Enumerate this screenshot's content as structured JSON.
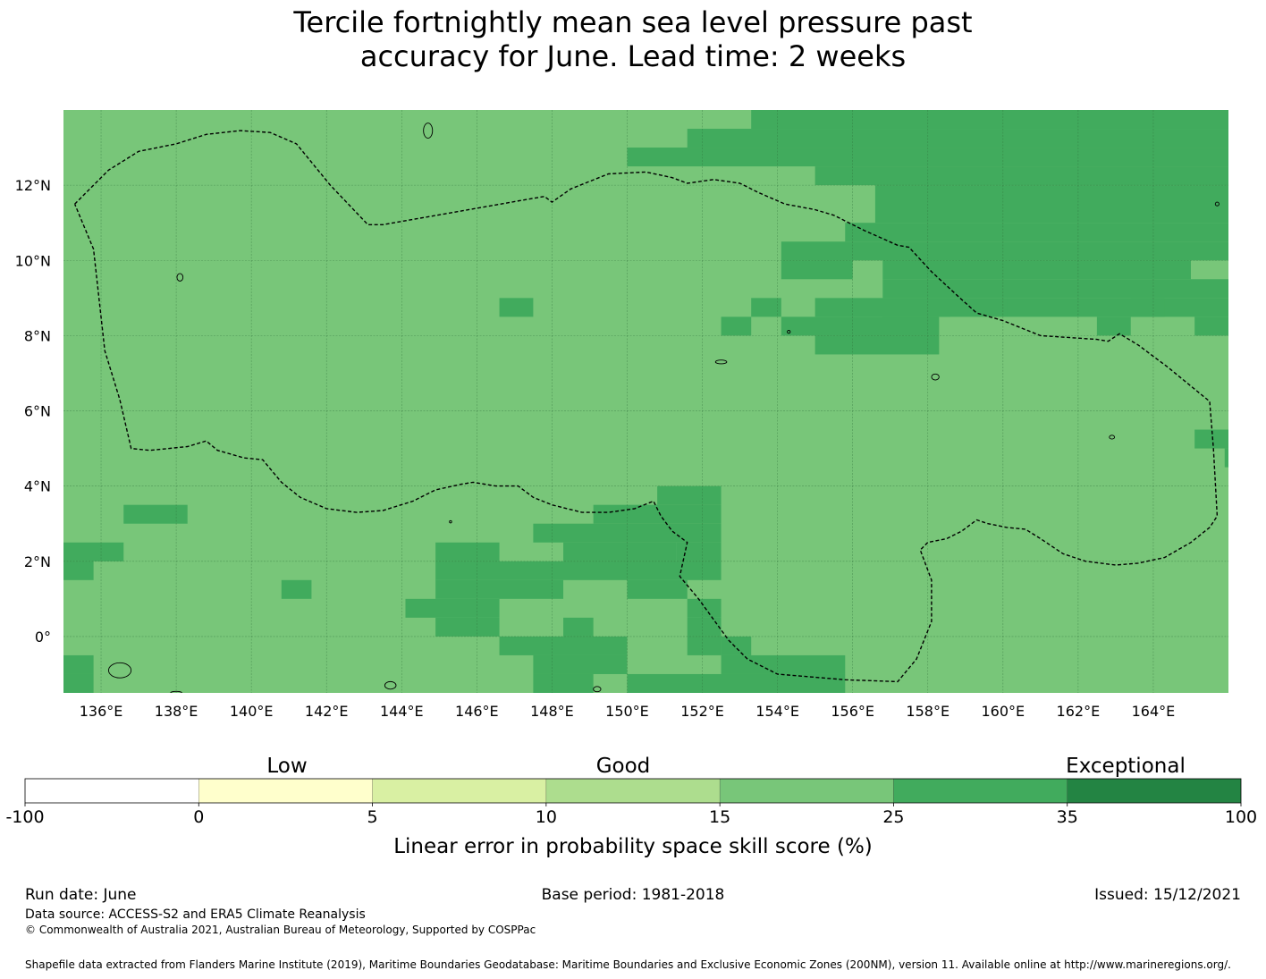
{
  "title": {
    "line1": "Tercile fortnightly mean sea level pressure past",
    "line2": "accuracy for June. Lead time: 2 weeks"
  },
  "map": {
    "lon_range": [
      135,
      166
    ],
    "lat_range": [
      -1.5,
      14
    ],
    "lon_ticks": [
      "136°E",
      "138°E",
      "140°E",
      "142°E",
      "144°E",
      "146°E",
      "148°E",
      "150°E",
      "152°E",
      "154°E",
      "156°E",
      "158°E",
      "160°E",
      "162°E",
      "164°E"
    ],
    "lat_ticks": [
      "0°",
      "2°N",
      "4°N",
      "6°N",
      "8°N",
      "10°N",
      "12°N"
    ],
    "gridlines": true,
    "base_color": "#78c679",
    "high_color": "#41ab5d",
    "high_cells": [
      [
        153.3,
        166,
        13.5,
        14
      ],
      [
        151.6,
        166,
        13,
        13.5
      ],
      [
        150,
        166,
        12.5,
        13
      ],
      [
        155,
        166,
        12,
        12.5
      ],
      [
        156.6,
        166,
        11,
        12
      ],
      [
        155.8,
        166,
        10.5,
        11
      ],
      [
        154.1,
        166,
        10,
        10.5
      ],
      [
        154.1,
        156,
        9.5,
        10
      ],
      [
        156.8,
        165,
        9.5,
        10
      ],
      [
        156.8,
        166,
        9,
        9.5
      ],
      [
        156.8,
        158.6,
        8.5,
        9
      ],
      [
        160.1,
        166,
        8.5,
        9
      ],
      [
        146.6,
        147.5,
        8.5,
        9
      ],
      [
        153.3,
        154.1,
        8.5,
        9
      ],
      [
        155,
        160.1,
        8.5,
        9
      ],
      [
        163.4,
        164.3,
        8.5,
        9
      ],
      [
        152.5,
        153.3,
        8,
        8.5
      ],
      [
        154.1,
        158.3,
        8,
        8.5
      ],
      [
        162.5,
        163.4,
        8,
        8.5
      ],
      [
        165.1,
        166,
        8,
        8.5
      ],
      [
        155,
        158.3,
        7.5,
        8
      ],
      [
        165.1,
        166,
        5,
        5.5
      ],
      [
        165.9,
        166,
        4.5,
        5
      ],
      [
        150.8,
        152.5,
        3.5,
        4
      ],
      [
        149.1,
        152.5,
        3,
        3.5
      ],
      [
        136.6,
        138.3,
        3,
        3.5
      ],
      [
        147.5,
        152.5,
        2.5,
        3
      ],
      [
        148.3,
        151.3,
        2,
        2.5
      ],
      [
        135,
        136.6,
        2,
        2.5
      ],
      [
        144.9,
        146.6,
        2,
        2.5
      ],
      [
        151.3,
        152.5,
        2,
        2.5
      ],
      [
        144.9,
        152.5,
        1.5,
        2
      ],
      [
        135,
        135.8,
        1.5,
        2
      ],
      [
        140.8,
        141.6,
        1,
        1.5
      ],
      [
        144.9,
        148.3,
        1,
        1.5
      ],
      [
        150,
        151.6,
        1,
        1.5
      ],
      [
        144.1,
        146.6,
        0.5,
        1
      ],
      [
        151.6,
        152.5,
        0.5,
        1
      ],
      [
        144.9,
        146.6,
        0,
        0.5
      ],
      [
        148.3,
        149.1,
        0,
        0.5
      ],
      [
        151.6,
        152.5,
        0,
        0.5
      ],
      [
        146.6,
        150,
        -0.5,
        0
      ],
      [
        151.6,
        152.5,
        -0.5,
        0
      ],
      [
        152.5,
        153.3,
        -0.5,
        0
      ],
      [
        135,
        135.8,
        -1,
        -0.5
      ],
      [
        147.5,
        150,
        -1,
        -0.5
      ],
      [
        152.5,
        155.8,
        -1,
        -0.5
      ],
      [
        135,
        135.8,
        -1.5,
        -1
      ],
      [
        147.5,
        149.1,
        -1.5,
        -1
      ],
      [
        150,
        155.8,
        -1.5,
        -1
      ]
    ],
    "eez_boundary": [
      [
        135.3,
        11.5
      ],
      [
        136.2,
        12.4
      ],
      [
        137,
        12.9
      ],
      [
        138,
        13.1
      ],
      [
        138.8,
        13.35
      ],
      [
        139.7,
        13.45
      ],
      [
        140.5,
        13.4
      ],
      [
        141.2,
        13.1
      ],
      [
        142.1,
        12
      ],
      [
        143.1,
        10.95
      ],
      [
        143.5,
        10.95
      ],
      [
        145.5,
        11.3
      ],
      [
        147.2,
        11.6
      ],
      [
        147.8,
        11.7
      ],
      [
        148,
        11.55
      ],
      [
        148.5,
        11.9
      ],
      [
        149.5,
        12.3
      ],
      [
        150.5,
        12.35
      ],
      [
        151.2,
        12.2
      ],
      [
        151.6,
        12.05
      ],
      [
        152.3,
        12.15
      ],
      [
        153,
        12.05
      ],
      [
        153.5,
        11.8
      ],
      [
        154.2,
        11.5
      ],
      [
        155,
        11.35
      ],
      [
        155.5,
        11.2
      ],
      [
        156.3,
        10.8
      ],
      [
        157.2,
        10.4
      ],
      [
        157.5,
        10.35
      ],
      [
        158.1,
        9.7
      ],
      [
        158.8,
        9.05
      ],
      [
        159.3,
        8.6
      ],
      [
        160,
        8.4
      ],
      [
        161,
        8
      ],
      [
        162.5,
        7.9
      ],
      [
        162.8,
        7.85
      ],
      [
        163.1,
        8.05
      ],
      [
        163.6,
        7.75
      ],
      [
        164.4,
        7.15
      ],
      [
        165.5,
        6.25
      ],
      [
        165.6,
        5
      ],
      [
        165.7,
        3.2
      ],
      [
        165.5,
        2.9
      ],
      [
        165,
        2.5
      ],
      [
        164.3,
        2.1
      ],
      [
        163.6,
        1.95
      ],
      [
        163,
        1.9
      ],
      [
        162.2,
        2
      ],
      [
        161.6,
        2.2
      ],
      [
        161,
        2.6
      ],
      [
        160.6,
        2.85
      ],
      [
        160.1,
        2.9
      ],
      [
        159.6,
        3
      ],
      [
        159.3,
        3.1
      ],
      [
        158.9,
        2.8
      ],
      [
        158.5,
        2.6
      ],
      [
        158,
        2.5
      ],
      [
        157.8,
        2.3
      ],
      [
        158.1,
        1.5
      ],
      [
        158.1,
        0.4
      ],
      [
        157.7,
        -0.6
      ],
      [
        157.2,
        -1.2
      ],
      [
        155.8,
        -1.15
      ],
      [
        154,
        -1
      ],
      [
        153.2,
        -0.6
      ],
      [
        152.7,
        -0.1
      ],
      [
        151.9,
        1
      ],
      [
        151.4,
        1.6
      ],
      [
        151.6,
        2.5
      ],
      [
        151.2,
        2.8
      ],
      [
        150.9,
        3.2
      ],
      [
        150.7,
        3.6
      ],
      [
        150.2,
        3.4
      ],
      [
        149.5,
        3.3
      ],
      [
        148.8,
        3.3
      ],
      [
        148,
        3.5
      ],
      [
        147.5,
        3.7
      ],
      [
        147.1,
        4
      ],
      [
        146.5,
        4
      ],
      [
        146.2,
        4.05
      ],
      [
        145.9,
        4.1
      ],
      [
        145.6,
        4.05
      ],
      [
        144.9,
        3.9
      ],
      [
        144.3,
        3.6
      ],
      [
        143.5,
        3.35
      ],
      [
        142.8,
        3.3
      ],
      [
        142,
        3.4
      ],
      [
        141.3,
        3.7
      ],
      [
        140.8,
        4.1
      ],
      [
        140.3,
        4.7
      ],
      [
        139.8,
        4.75
      ],
      [
        139.1,
        4.95
      ],
      [
        138.8,
        5.2
      ],
      [
        138.3,
        5.05
      ],
      [
        137.3,
        4.95
      ],
      [
        136.8,
        5
      ],
      [
        136.5,
        6.3
      ],
      [
        136.1,
        7.6
      ],
      [
        135.8,
        10.3
      ],
      [
        135.3,
        11.5
      ]
    ],
    "islands": [
      [
        144.7,
        13.45,
        0.12,
        0.2
      ],
      [
        138.1,
        9.55,
        0.08,
        0.1
      ],
      [
        152.5,
        7.3,
        0.15,
        0.05
      ],
      [
        158.2,
        6.9,
        0.1,
        0.08
      ],
      [
        162.9,
        5.3,
        0.07,
        0.05
      ],
      [
        154.3,
        8.1,
        0.04,
        0.04
      ],
      [
        136.5,
        -0.9,
        0.3,
        0.2
      ],
      [
        149.2,
        -1.4,
        0.1,
        0.07
      ],
      [
        138,
        -1.5,
        0.15,
        0.04
      ],
      [
        143.7,
        -1.3,
        0.15,
        0.1
      ],
      [
        145.3,
        3.05,
        0.03,
        0.03
      ],
      [
        165.7,
        11.5,
        0.05,
        0.05
      ]
    ]
  },
  "colorbar": {
    "categories": [
      "Low",
      "Good",
      "Exceptional"
    ],
    "boundaries": [
      "-100",
      "0",
      "5",
      "10",
      "15",
      "25",
      "35",
      "100"
    ],
    "colors": [
      "#ffffff",
      "#ffffcc",
      "#d9f0a3",
      "#addd8e",
      "#78c679",
      "#41ab5d",
      "#238443"
    ],
    "label": "Linear error in probability space skill score (%)"
  },
  "footer": {
    "run_date": "Run date: June",
    "base_period": "Base period: 1981-2018",
    "issued": "Issued: 15/12/2021",
    "data_source": "Data source: ACCESS-S2 and ERA5 Climate Reanalysis",
    "copyright": "© Commonwealth of Australia 2021, Australian Bureau of Meteorology, Supported by COSPPac",
    "shapefile": "Shapefile data extracted from Flanders Marine Institute (2019), Maritime Boundaries Geodatabase: Maritime Boundaries and Exclusive Economic Zones (200NM), version 11. Available online at http://www.marineregions.org/."
  }
}
